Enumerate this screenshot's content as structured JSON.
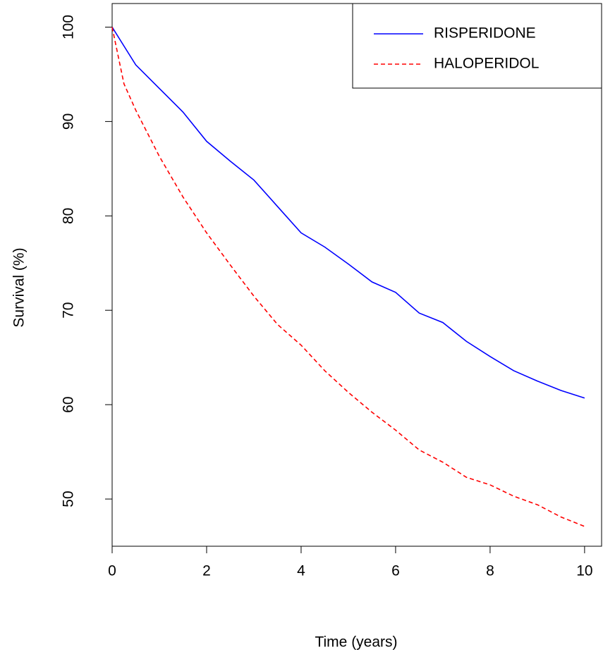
{
  "chart_data": {
    "type": "line",
    "xlabel": "Time (years)",
    "ylabel": "Survival (%)",
    "x": [
      0,
      0.25,
      0.5,
      1,
      1.5,
      2,
      2.5,
      3,
      3.5,
      4,
      4.5,
      5,
      5.5,
      6,
      6.5,
      7,
      7.5,
      8,
      8.5,
      9,
      9.5,
      10
    ],
    "series": [
      {
        "name": "RISPERIDONE",
        "color": "#0000ff",
        "linestyle": "solid",
        "values": [
          100,
          98,
          96,
          93.5,
          91,
          87.9,
          85.8,
          83.8,
          81,
          78.2,
          76.7,
          74.9,
          73,
          71.9,
          69.7,
          68.7,
          66.7,
          65.1,
          63.6,
          62.5,
          61.5,
          60.7
        ]
      },
      {
        "name": "HALOPERIDOL",
        "color": "#ff0000",
        "linestyle": "dashed",
        "values": [
          100,
          94,
          91.2,
          86.3,
          82,
          78.2,
          74.8,
          71.5,
          68.5,
          66.3,
          63.6,
          61.3,
          59.2,
          57.3,
          55.2,
          53.9,
          52.3,
          51.5,
          50.3,
          49.4,
          48.1,
          47.1
        ]
      }
    ],
    "xlim": [
      0,
      10.36
    ],
    "xticks": [
      0,
      2,
      4,
      6,
      8,
      10
    ],
    "ylim": [
      45,
      102.5
    ],
    "yticks": [
      50,
      60,
      70,
      80,
      90,
      100
    ],
    "legend": "topright"
  }
}
